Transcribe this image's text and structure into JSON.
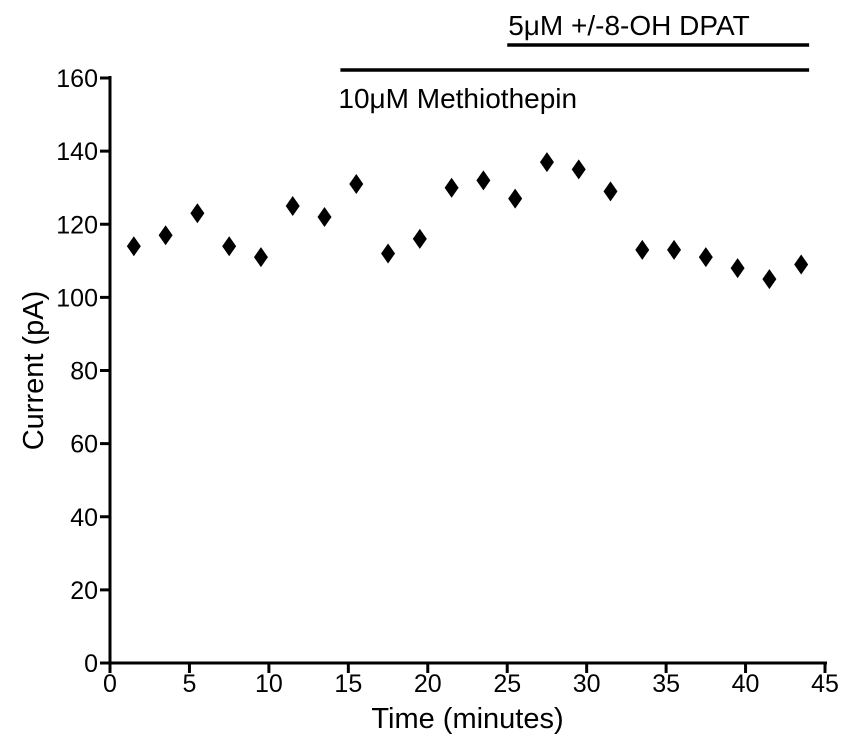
{
  "chart_data": {
    "type": "scatter",
    "title": "",
    "xlabel": "Time (minutes)",
    "ylabel": "Current (pA)",
    "xlim": [
      0,
      45
    ],
    "ylim": [
      0,
      160
    ],
    "xticks": [
      0,
      5,
      10,
      15,
      20,
      25,
      30,
      35,
      40,
      45
    ],
    "yticks": [
      0,
      20,
      40,
      60,
      80,
      100,
      120,
      140,
      160
    ],
    "xtick_labels": [
      "0",
      "5",
      "10",
      "15",
      "20",
      "25",
      "30",
      "35",
      "40",
      "45"
    ],
    "ytick_labels": [
      "0",
      "20",
      "40",
      "60",
      "80",
      "100",
      "120",
      "140",
      "160"
    ],
    "grid": false,
    "marker": "diamond",
    "marker_color": "#000000",
    "series": [
      {
        "x": [
          1.5,
          3.5,
          5.5,
          7.5,
          9.5,
          11.5,
          13.5,
          15.5,
          17.5,
          19.5,
          21.5,
          23.5,
          25.5,
          27.5,
          29.5,
          31.5,
          33.5,
          35.5,
          37.5,
          39.5,
          41.5,
          43.5
        ],
        "y": [
          114,
          117,
          123,
          114,
          111,
          125,
          122,
          131,
          112,
          116,
          130,
          132,
          127,
          137,
          135,
          129,
          113,
          113,
          111,
          108,
          105,
          109
        ]
      }
    ],
    "annotations": [
      {
        "label": "5μM +/-8-OH DPAT",
        "x_start": 25,
        "x_end": 44,
        "position": "above-line"
      },
      {
        "label": "10μM Methiothepin",
        "x_start": 14.5,
        "x_end": 44,
        "position": "below-line"
      }
    ]
  }
}
